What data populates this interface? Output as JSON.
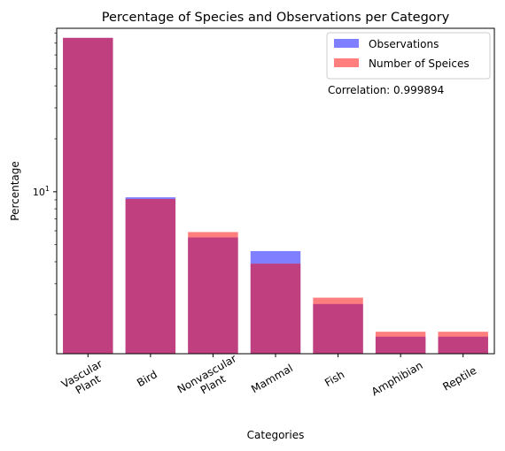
{
  "colors": {
    "observations": "#0000ff",
    "species": "#ff0000",
    "bar_opacity": 0.5
  },
  "chart_data": {
    "type": "bar",
    "title": "Percentage of Species and Observations per Category",
    "xlabel": "Categories",
    "ylabel": "Percentage",
    "yscale": "log",
    "ylim": [
      1.2,
      85
    ],
    "major_tick_label": "10",
    "major_tick_exponent": "1",
    "categories": [
      [
        "Vascular",
        "Plant"
      ],
      [
        "Bird"
      ],
      [
        "Nonvascular",
        "Plant"
      ],
      [
        "Mammal"
      ],
      [
        "Fish"
      ],
      [
        "Amphibian"
      ],
      [
        "Reptile"
      ]
    ],
    "series": [
      {
        "name": "Observations",
        "values": [
          75.0,
          9.3,
          5.5,
          4.6,
          2.3,
          1.5,
          1.5
        ]
      },
      {
        "name": "Number of Speices",
        "values": [
          75.0,
          9.1,
          5.9,
          3.9,
          2.5,
          1.6,
          1.6
        ]
      }
    ],
    "annotation": "Correlation: 0.999894",
    "legend_position": "top-right",
    "grid": false
  }
}
